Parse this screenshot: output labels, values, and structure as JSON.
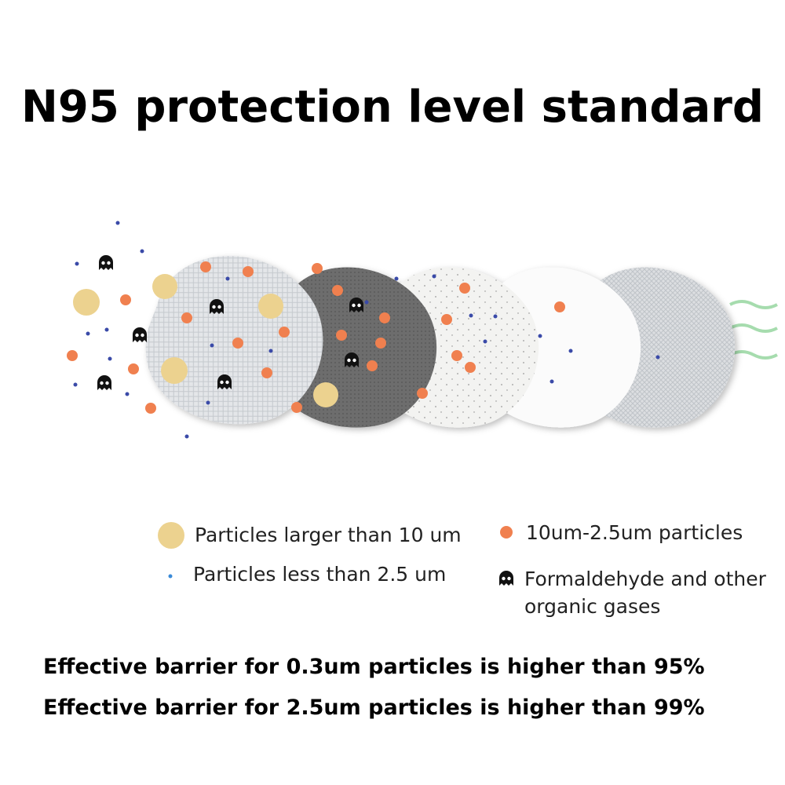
{
  "title": "N95 protection level standard",
  "legend": [
    {
      "lines": [
        "Particles larger than 10 um"
      ]
    },
    {
      "lines": [
        "10um-2.5um particles"
      ]
    },
    {
      "lines": [
        "Particles less than 2.5 um"
      ]
    },
    {
      "lines": [
        "Formaldehyde and other",
        "organic gases"
      ]
    }
  ],
  "statements": [
    "Effective barrier for 0.3um particles is higher than 95%",
    "Effective barrier for 2.5um particles is higher than 99%"
  ]
}
